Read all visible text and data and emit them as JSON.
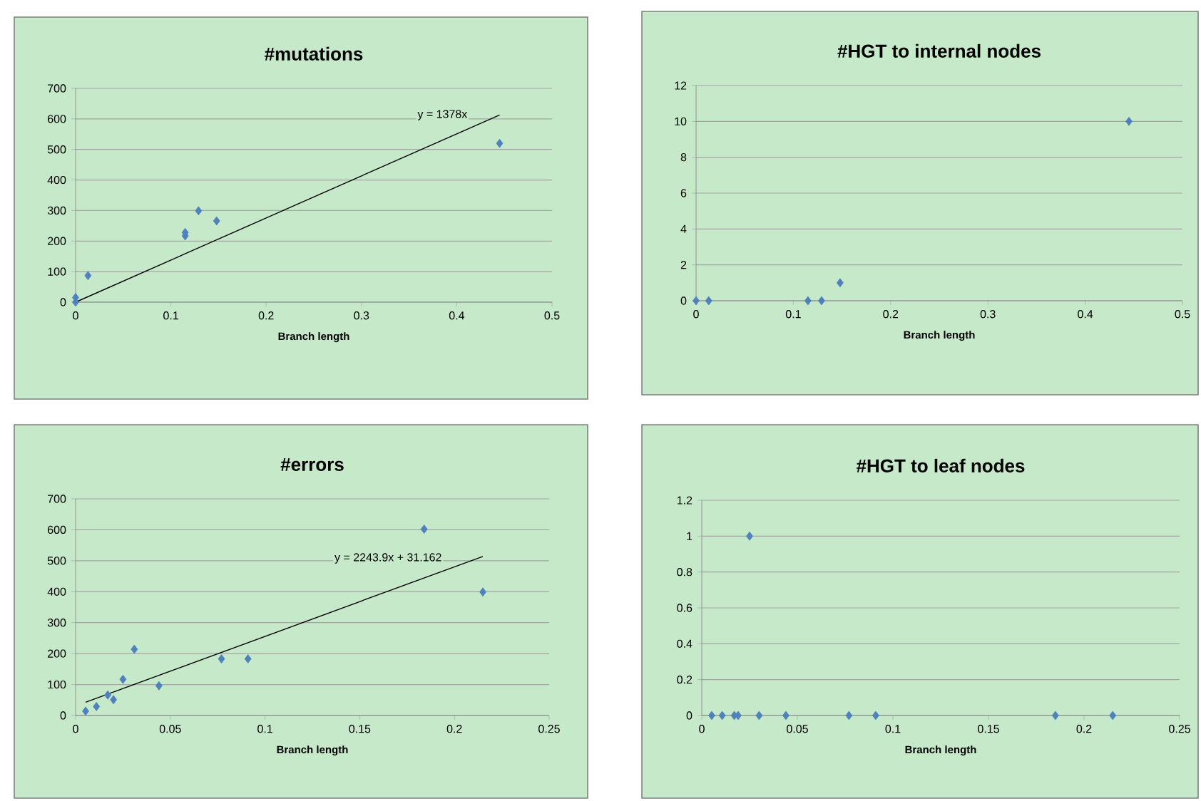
{
  "chart_data": [
    {
      "type": "scatter",
      "title": "#mutations",
      "xlabel": "Branch length",
      "xlim": [
        0,
        0.5
      ],
      "ylim": [
        0,
        700
      ],
      "xticks": [
        0,
        0.1,
        0.2,
        0.3,
        0.4,
        0.5
      ],
      "yticks": [
        0,
        100,
        200,
        300,
        400,
        500,
        600,
        700
      ],
      "grid": "y",
      "marker": "diamond",
      "annotations": [
        "y = 1378x"
      ],
      "series": [
        {
          "color": "#4f81bd",
          "x": [
            0,
            0,
            0.013,
            0.115,
            0.115,
            0.129,
            0.148,
            0.445
          ],
          "values": [
            0,
            15,
            87,
            228,
            217,
            299,
            266,
            520
          ]
        },
        {
          "type": "line",
          "color": "#000000",
          "marker": "none",
          "x": [
            0,
            0.445
          ],
          "values": [
            0,
            613
          ]
        }
      ]
    },
    {
      "type": "scatter",
      "title": "#HGT to internal nodes",
      "xlabel": "Branch length",
      "xlim": [
        0,
        0.5
      ],
      "ylim": [
        0,
        12
      ],
      "xticks": [
        0,
        0.1,
        0.2,
        0.3,
        0.4,
        0.5
      ],
      "yticks": [
        0,
        2,
        4,
        6,
        8,
        10,
        12
      ],
      "grid": "y",
      "marker": "diamond",
      "series": [
        {
          "color": "#4f81bd",
          "x": [
            0,
            0.013,
            0.115,
            0.129,
            0.148,
            0.445
          ],
          "values": [
            0,
            0,
            0,
            0,
            1,
            10
          ]
        }
      ]
    },
    {
      "type": "scatter",
      "title": "#errors",
      "xlabel": "Branch length",
      "xlim": [
        0,
        0.25
      ],
      "ylim": [
        0,
        700
      ],
      "xticks": [
        0,
        0.05,
        0.1,
        0.15,
        0.2,
        0.25
      ],
      "yticks": [
        0,
        100,
        200,
        300,
        400,
        500,
        600,
        700
      ],
      "grid": "y",
      "marker": "diamond",
      "annotations": [
        "y = 2243.9x + 31.162"
      ],
      "series": [
        {
          "color": "#4f81bd",
          "x": [
            0.0053,
            0.011,
            0.017,
            0.02,
            0.025,
            0.031,
            0.044,
            0.077,
            0.091,
            0.184,
            0.215
          ],
          "values": [
            14,
            29,
            66,
            51,
            117,
            214,
            96,
            183,
            183,
            602,
            399
          ]
        },
        {
          "type": "line",
          "color": "#000000",
          "marker": "none",
          "x": [
            0.0053,
            0.215
          ],
          "values": [
            43,
            514
          ]
        }
      ]
    },
    {
      "type": "scatter",
      "title": "#HGT to leaf nodes",
      "xlabel": "Branch length",
      "xlim": [
        0,
        0.25
      ],
      "ylim": [
        0,
        1.2
      ],
      "xticks": [
        0,
        0.05,
        0.1,
        0.15,
        0.2,
        0.25
      ],
      "yticks": [
        0,
        0.2,
        0.4,
        0.6,
        0.8,
        1,
        1.2
      ],
      "grid": "y",
      "marker": "diamond",
      "series": [
        {
          "color": "#4f81bd",
          "x": [
            0.0052,
            0.0107,
            0.017,
            0.019,
            0.025,
            0.03,
            0.044,
            0.077,
            0.091,
            0.185,
            0.215
          ],
          "values": [
            0,
            0,
            0,
            0,
            1,
            0,
            0,
            0,
            0,
            0,
            0
          ]
        }
      ]
    }
  ]
}
